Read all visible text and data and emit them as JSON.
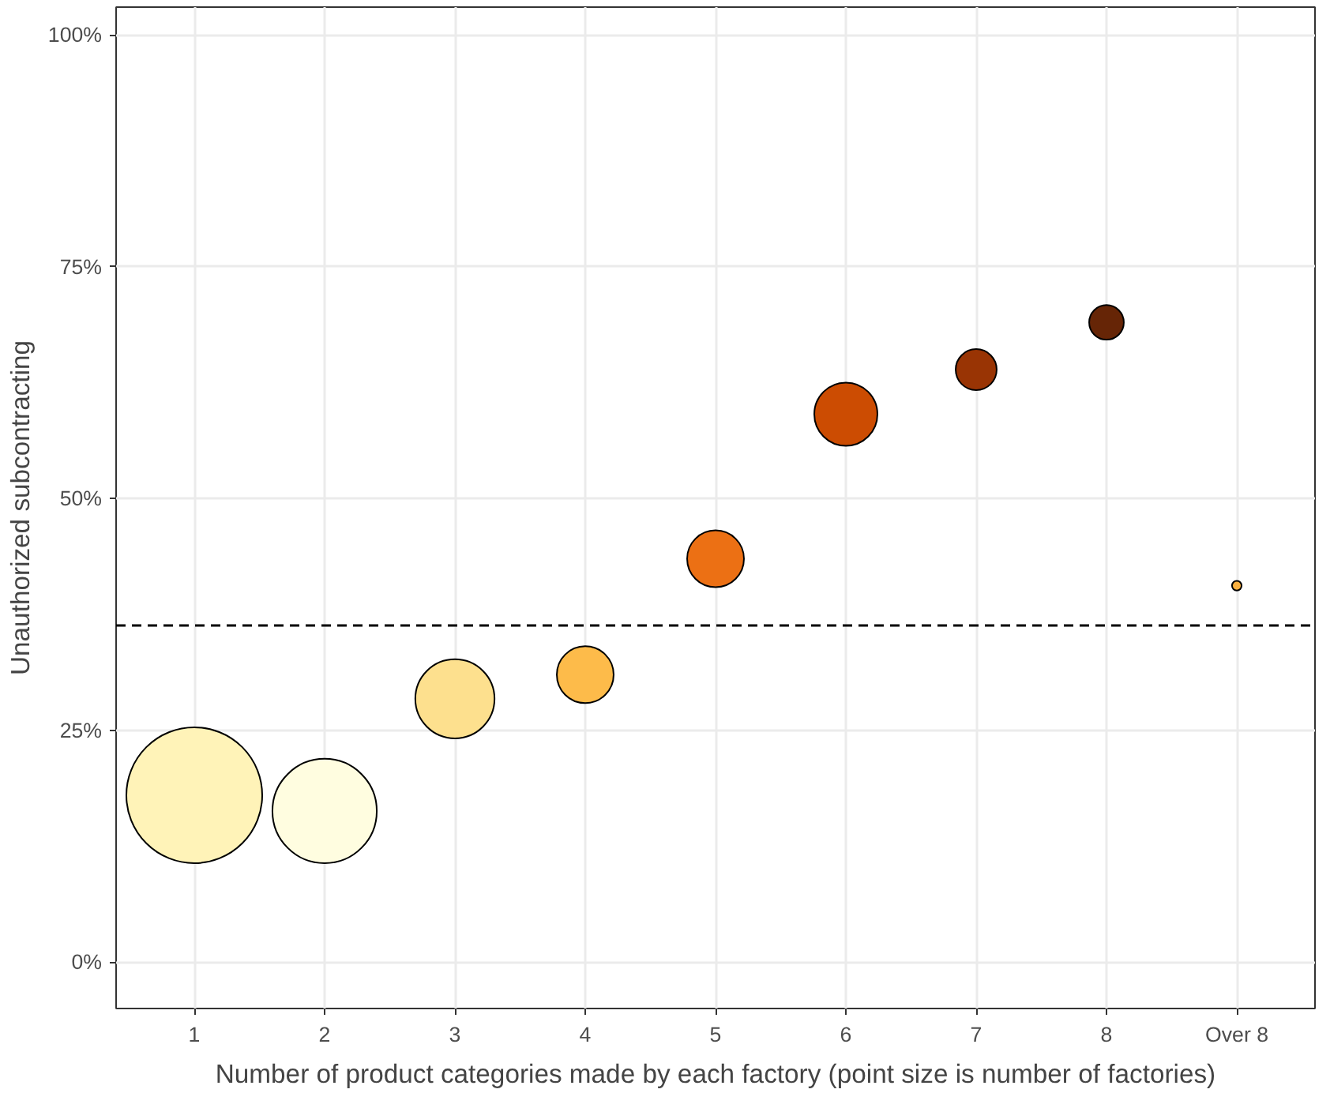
{
  "chart_data": {
    "type": "bubble",
    "xlabel": "Number of product categories made by each factory (point size is number of factories)",
    "ylabel": "Unauthorized subcontracting",
    "categories": [
      "1",
      "2",
      "3",
      "4",
      "5",
      "6",
      "7",
      "8",
      "Over 8"
    ],
    "values": [
      18.0,
      16.3,
      28.4,
      31.0,
      43.5,
      59.1,
      63.9,
      69.0,
      40.6
    ],
    "sizes": [
      1,
      0.59,
      0.34,
      0.175,
      0.175,
      0.216,
      0.091,
      0.065,
      0.005
    ],
    "colors": [
      "#fff3b8",
      "#fffde0",
      "#fde08e",
      "#fdbb4a",
      "#ec7014",
      "#cc4c02",
      "#993404",
      "#662506",
      "#f9b040"
    ],
    "ylim": [
      -5,
      103
    ],
    "yticks": [
      {
        "value": 0,
        "label": "0%"
      },
      {
        "value": 25,
        "label": "25%"
      },
      {
        "value": 50,
        "label": "50%"
      },
      {
        "value": 75,
        "label": "75%"
      },
      {
        "value": 100,
        "label": "100%"
      }
    ],
    "ref_lines": [
      {
        "axis": "y",
        "value": 36.3,
        "label": null,
        "color": "#000000",
        "line_style": "dashed"
      }
    ],
    "grid": true
  }
}
